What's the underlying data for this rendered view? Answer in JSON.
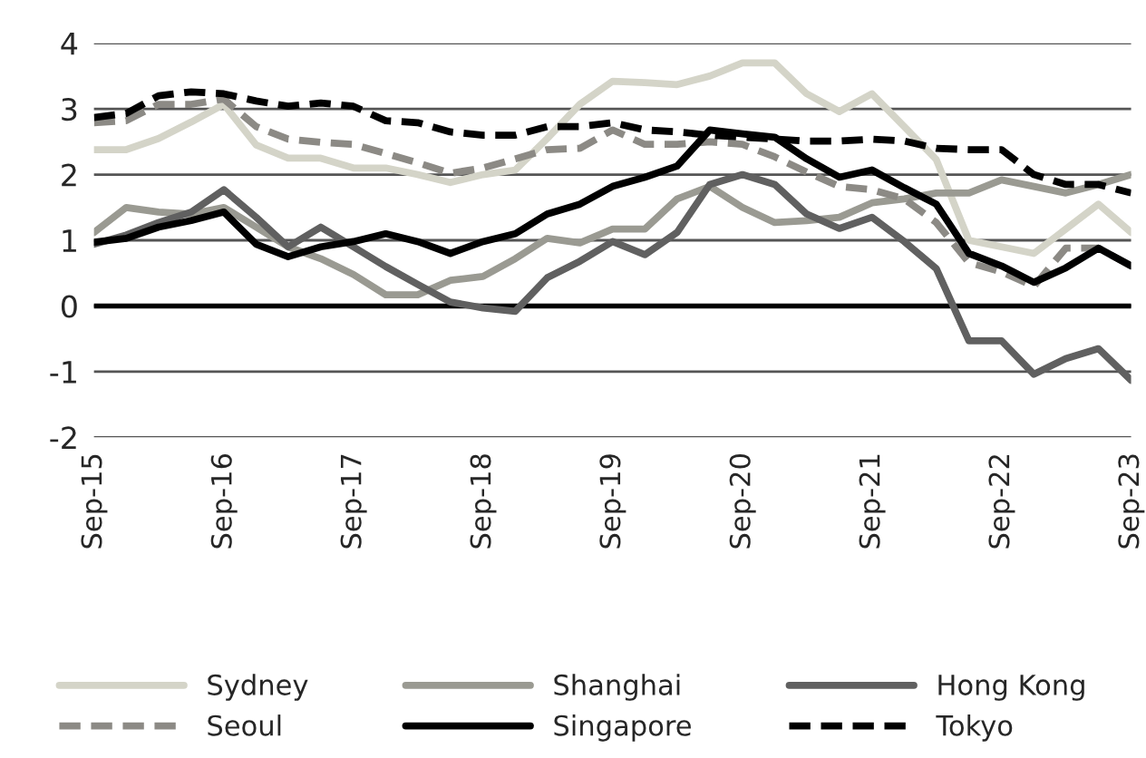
{
  "chart_data": {
    "type": "line",
    "x": [
      "2015-09",
      "2015-12",
      "2016-03",
      "2016-06",
      "2016-09",
      "2016-12",
      "2017-03",
      "2017-06",
      "2017-09",
      "2017-12",
      "2018-03",
      "2018-06",
      "2018-09",
      "2018-12",
      "2019-03",
      "2019-06",
      "2019-09",
      "2019-12",
      "2020-03",
      "2020-06",
      "2020-09",
      "2020-12",
      "2021-03",
      "2021-06",
      "2021-09",
      "2021-12",
      "2022-03",
      "2022-06",
      "2022-09",
      "2022-12",
      "2023-03",
      "2023-06",
      "2023-09"
    ],
    "series": [
      {
        "name": "Sydney",
        "color": "#d4d4c8",
        "line_style": "solid",
        "values": [
          2.38,
          2.38,
          2.55,
          2.8,
          3.07,
          2.45,
          2.25,
          2.25,
          2.1,
          2.1,
          2.0,
          1.88,
          2.0,
          2.07,
          2.55,
          3.07,
          3.42,
          3.4,
          3.37,
          3.5,
          3.7,
          3.7,
          3.23,
          2.96,
          3.23,
          2.73,
          2.23,
          1.0,
          0.9,
          0.8,
          1.17,
          1.55,
          1.12
        ]
      },
      {
        "name": "Shanghai",
        "color": "#9a9a92",
        "line_style": "solid",
        "values": [
          1.12,
          1.5,
          1.43,
          1.4,
          1.5,
          1.2,
          0.9,
          0.72,
          0.48,
          0.17,
          0.17,
          0.39,
          0.45,
          0.72,
          1.03,
          0.96,
          1.17,
          1.17,
          1.63,
          1.82,
          1.5,
          1.27,
          1.3,
          1.35,
          1.57,
          1.63,
          1.72,
          1.72,
          1.92,
          1.82,
          1.72,
          1.85,
          2.0
        ]
      },
      {
        "name": "Hong Kong",
        "color": "#606060",
        "line_style": "solid",
        "values": [
          0.94,
          1.08,
          1.27,
          1.43,
          1.77,
          1.35,
          0.9,
          1.2,
          0.9,
          0.6,
          0.33,
          0.06,
          -0.03,
          -0.08,
          0.43,
          0.68,
          0.98,
          0.78,
          1.12,
          1.85,
          2.0,
          1.85,
          1.4,
          1.18,
          1.35,
          0.98,
          0.57,
          -0.53,
          -0.53,
          -1.04,
          -0.8,
          -0.65,
          -1.13
        ]
      },
      {
        "name": "Seoul",
        "color": "#8c8a85",
        "line_style": "dashed",
        "values": [
          2.79,
          2.82,
          3.07,
          3.07,
          3.15,
          2.73,
          2.54,
          2.49,
          2.46,
          2.32,
          2.18,
          2.02,
          2.1,
          2.24,
          2.38,
          2.4,
          2.68,
          2.46,
          2.46,
          2.5,
          2.46,
          2.27,
          2.04,
          1.82,
          1.77,
          1.63,
          1.27,
          0.66,
          0.52,
          0.3,
          0.88,
          0.88,
          0.61
        ]
      },
      {
        "name": "Singapore",
        "color": "#000000",
        "line_style": "solid",
        "values": [
          0.97,
          1.03,
          1.2,
          1.3,
          1.43,
          0.94,
          0.75,
          0.9,
          0.98,
          1.1,
          0.98,
          0.8,
          0.98,
          1.1,
          1.4,
          1.55,
          1.82,
          1.96,
          2.13,
          2.68,
          2.62,
          2.57,
          2.24,
          1.96,
          2.07,
          1.8,
          1.55,
          0.8,
          0.61,
          0.36,
          0.58,
          0.88,
          0.61
        ]
      },
      {
        "name": "Tokyo",
        "color": "#000000",
        "line_style": "dashed",
        "values": [
          2.87,
          2.93,
          3.2,
          3.26,
          3.23,
          3.12,
          3.04,
          3.09,
          3.04,
          2.82,
          2.79,
          2.65,
          2.6,
          2.6,
          2.73,
          2.73,
          2.79,
          2.68,
          2.65,
          2.6,
          2.57,
          2.54,
          2.51,
          2.51,
          2.54,
          2.51,
          2.4,
          2.38,
          2.38,
          2.0,
          1.85,
          1.85,
          1.72
        ]
      }
    ],
    "xlim": [
      "2015-09",
      "2023-09"
    ],
    "xticks": [
      {
        "value": "2015-09",
        "label": "Sep-15"
      },
      {
        "value": "2016-09",
        "label": "Sep-16"
      },
      {
        "value": "2017-09",
        "label": "Sep-17"
      },
      {
        "value": "2018-09",
        "label": "Sep-18"
      },
      {
        "value": "2019-09",
        "label": "Sep-19"
      },
      {
        "value": "2020-09",
        "label": "Sep-20"
      },
      {
        "value": "2021-09",
        "label": "Sep-21"
      },
      {
        "value": "2022-09",
        "label": "Sep-22"
      },
      {
        "value": "2023-09",
        "label": "Sep-23"
      }
    ],
    "ylim": [
      -2,
      4
    ],
    "yticks": [
      -2,
      -1,
      0,
      1,
      2,
      3,
      4
    ],
    "ref_lines": [
      {
        "axis": "y",
        "value": 0,
        "color": "#000000"
      }
    ],
    "grid": "y",
    "legend": "bottom",
    "marker": "none"
  }
}
